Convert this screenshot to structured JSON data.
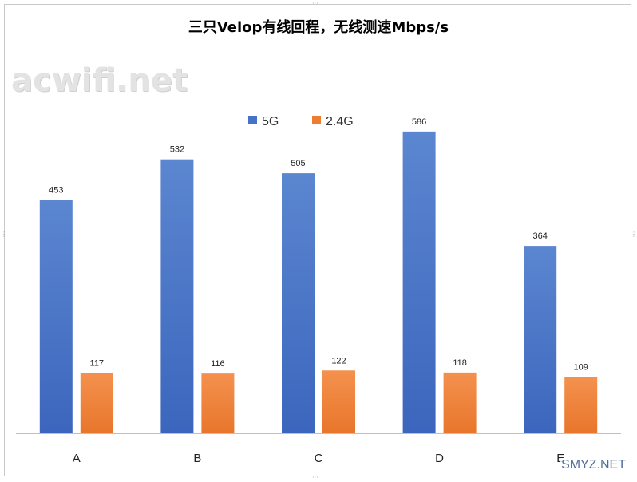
{
  "chart_data": {
    "type": "bar",
    "title": "三只Velop有线回程，无线测速Mbps/s",
    "categories": [
      "A",
      "B",
      "C",
      "D",
      "E"
    ],
    "series": [
      {
        "name": "5G",
        "values": [
          453,
          532,
          505,
          586,
          364
        ],
        "color": "#4472c4"
      },
      {
        "name": "2.4G",
        "values": [
          117,
          116,
          122,
          118,
          109
        ],
        "color": "#ed7d31"
      }
    ],
    "xlabel": "",
    "ylabel": "",
    "ylim": [
      0,
      640
    ],
    "grid": false,
    "legend": "top-center"
  },
  "watermarks": {
    "top_left": "acwifi.net",
    "bottom_right": "SMYZ.NET"
  },
  "colors": {
    "bar_5g": "#4472c4",
    "bar_24g": "#ed7d31",
    "axis": "#808080"
  }
}
